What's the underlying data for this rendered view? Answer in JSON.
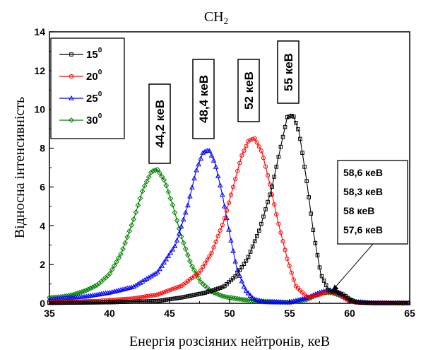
{
  "chart_data": {
    "type": "line",
    "title": "CH",
    "title_subscript": "2",
    "xlabel": "Енергія розсіяних нейтронів, кеВ",
    "ylabel": "Відносна інтенсивність",
    "xlim": [
      35,
      65
    ],
    "ylim": [
      0,
      14
    ],
    "x_ticks": [
      35,
      40,
      45,
      50,
      55,
      60,
      65
    ],
    "y_ticks": [
      0,
      2,
      4,
      6,
      8,
      10,
      12,
      14
    ],
    "x_tick_labels": [
      "35",
      "40",
      "45",
      "50",
      "55",
      "60",
      "65"
    ],
    "y_tick_labels": [
      "0",
      "2",
      "4",
      "6",
      "8",
      "10",
      "12",
      "14"
    ],
    "grid": false,
    "legend_position": "top-left",
    "series": [
      {
        "name": "15",
        "name_superscript": "0",
        "color": "#000000",
        "marker": "square",
        "peak_label": "55 кеВ",
        "x": [
          35,
          40,
          44,
          46,
          48,
          49.5,
          50.5,
          51.5,
          52.5,
          53.5,
          54.2,
          54.8,
          55.3,
          55.8,
          56.4,
          57,
          57.6,
          58.3,
          58.8,
          59.5,
          60,
          60.5,
          61,
          62,
          63,
          65
        ],
        "y": [
          0.02,
          0.05,
          0.12,
          0.3,
          0.55,
          0.85,
          1.4,
          2.3,
          3.8,
          5.9,
          7.9,
          9.6,
          9.7,
          8.8,
          6.4,
          3.6,
          1.5,
          0.6,
          0.62,
          0.45,
          0.2,
          0.06,
          0.03,
          0.01,
          0.01,
          0.01
        ]
      },
      {
        "name": "20",
        "name_superscript": "0",
        "color": "#ff0000",
        "marker": "circle",
        "peak_label": "52 кеВ",
        "x": [
          35,
          39,
          42,
          44,
          46,
          47.5,
          48.5,
          49.5,
          50.3,
          51,
          51.6,
          52.1,
          52.7,
          53.3,
          54,
          54.8,
          55.5,
          56.5,
          57.5,
          58.3,
          59,
          59.8,
          60.3,
          61,
          63,
          65
        ],
        "y": [
          0.05,
          0.12,
          0.25,
          0.45,
          0.9,
          1.6,
          2.6,
          4.2,
          6.0,
          7.6,
          8.4,
          8.5,
          7.8,
          6.3,
          4.3,
          2.3,
          0.9,
          0.3,
          0.45,
          0.62,
          0.5,
          0.2,
          0.06,
          0.03,
          0.02,
          0.02
        ]
      },
      {
        "name": "25",
        "name_superscript": "0",
        "color": "#0000ff",
        "marker": "triangle",
        "peak_label": "48,4 кеВ",
        "x": [
          35,
          38,
          40,
          42,
          44,
          45.5,
          46.5,
          47.2,
          47.8,
          48.3,
          48.8,
          49.4,
          50,
          50.6,
          51.3,
          52,
          53,
          55,
          56.5,
          57.6,
          58.3,
          59,
          59.6,
          60.2,
          62,
          65
        ],
        "y": [
          0.2,
          0.35,
          0.55,
          0.85,
          1.6,
          3.0,
          5.0,
          6.8,
          7.8,
          7.9,
          7.2,
          5.6,
          3.6,
          1.8,
          0.7,
          0.22,
          0.06,
          0.05,
          0.3,
          0.58,
          0.7,
          0.55,
          0.28,
          0.08,
          0.03,
          0.02
        ]
      },
      {
        "name": "30",
        "name_superscript": "0",
        "color": "#008000",
        "marker": "diamond",
        "peak_label": "44,2 кеВ",
        "x": [
          35,
          36,
          37,
          38,
          39,
          40,
          41,
          42,
          42.8,
          43.5,
          44,
          44.6,
          45.3,
          46,
          46.8,
          47.6,
          48.5,
          49.5,
          51,
          53,
          55,
          56.5,
          57.6,
          58.5,
          59.5,
          60.5,
          62,
          65
        ],
        "y": [
          0.3,
          0.33,
          0.45,
          0.65,
          0.95,
          1.5,
          2.6,
          4.3,
          5.9,
          6.8,
          6.9,
          6.3,
          5.0,
          3.4,
          2.0,
          1.1,
          0.6,
          0.35,
          0.2,
          0.1,
          0.05,
          0.2,
          0.55,
          0.55,
          0.35,
          0.08,
          0.03,
          0.02
        ]
      }
    ],
    "annotation": {
      "labels": [
        "58,6 кеВ",
        "58,3 кеВ",
        "58 кеВ",
        "57,6 кеВ"
      ],
      "arrow_to": [
        58.5,
        0.6
      ]
    }
  }
}
